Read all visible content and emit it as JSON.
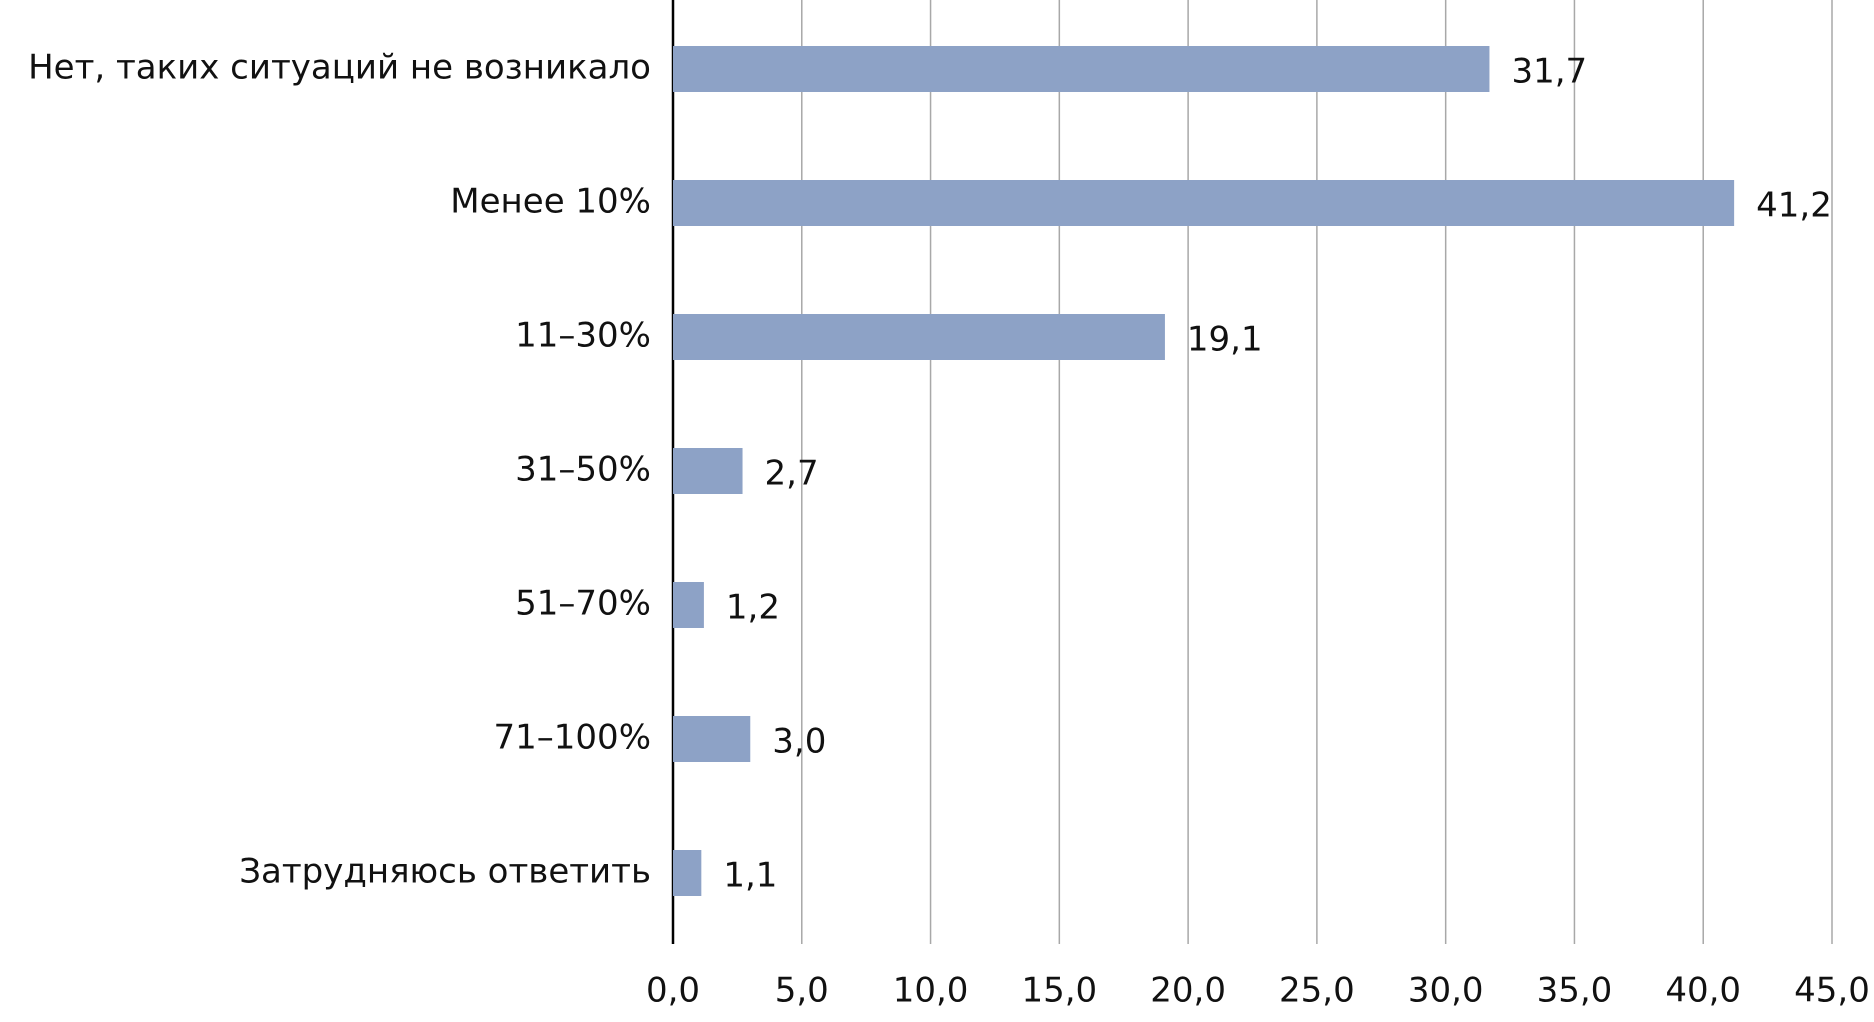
{
  "chart_data": {
    "type": "barh",
    "categories": [
      "Нет, таких ситуаций не возникало",
      "Менее 10%",
      "11–30%",
      "31–50%",
      "51–70%",
      "71–100%",
      "Затрудняюсь ответить"
    ],
    "values": [
      31.7,
      41.2,
      19.1,
      2.7,
      1.2,
      3.0,
      1.1
    ],
    "value_labels": [
      "31,7",
      "41,2",
      "19,1",
      "2,7",
      "1,2",
      "3,0",
      "1,1"
    ],
    "color": "#8da2c6",
    "xlim": [
      0,
      45
    ],
    "xticks": [
      {
        "value": 0,
        "label": "0,0"
      },
      {
        "value": 5,
        "label": "5,0"
      },
      {
        "value": 10,
        "label": "10,0"
      },
      {
        "value": 15,
        "label": "15,0"
      },
      {
        "value": 20,
        "label": "20,0"
      },
      {
        "value": 25,
        "label": "25,0"
      },
      {
        "value": 30,
        "label": "30,0"
      },
      {
        "value": 35,
        "label": "35,0"
      },
      {
        "value": 40,
        "label": "40,0"
      },
      {
        "value": 45,
        "label": "45,0"
      }
    ],
    "grid": true
  }
}
